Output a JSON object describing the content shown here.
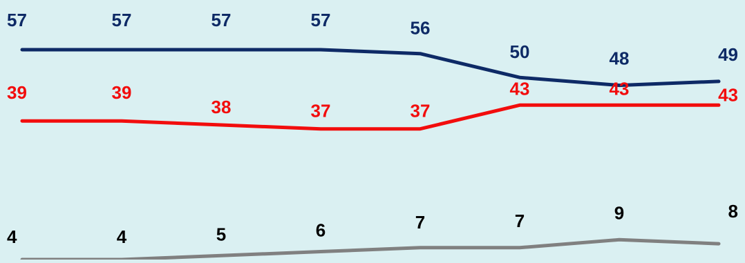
{
  "chart_data": {
    "type": "line",
    "x": [
      "1",
      "2",
      "3",
      "4",
      "5",
      "6",
      "7",
      "8"
    ],
    "series": [
      {
        "values": [
          57,
          57,
          57,
          57,
          56,
          50,
          48,
          49
        ],
        "labels": [
          "57",
          "57",
          "57",
          "57",
          "56",
          "50",
          "48",
          "49"
        ],
        "color": "#0E2A66"
      },
      {
        "values": [
          39,
          39,
          38,
          37,
          37,
          43,
          43,
          43
        ],
        "labels": [
          "39",
          "39",
          "38",
          "37",
          "37",
          "43",
          "43",
          "43"
        ],
        "color": "#F20D0D"
      },
      {
        "values": [
          4,
          4,
          5,
          6,
          7,
          7,
          9,
          8
        ],
        "labels": [
          "4",
          "4",
          "5",
          "6",
          "7",
          "7",
          "9",
          "8"
        ],
        "color": "#808080"
      }
    ],
    "label_colors": [
      "#0E2A66",
      "#F20D0D",
      "#000000"
    ],
    "ylim": [
      4,
      70
    ],
    "grid": false,
    "legend": "none",
    "background": "#DAF0F2"
  }
}
